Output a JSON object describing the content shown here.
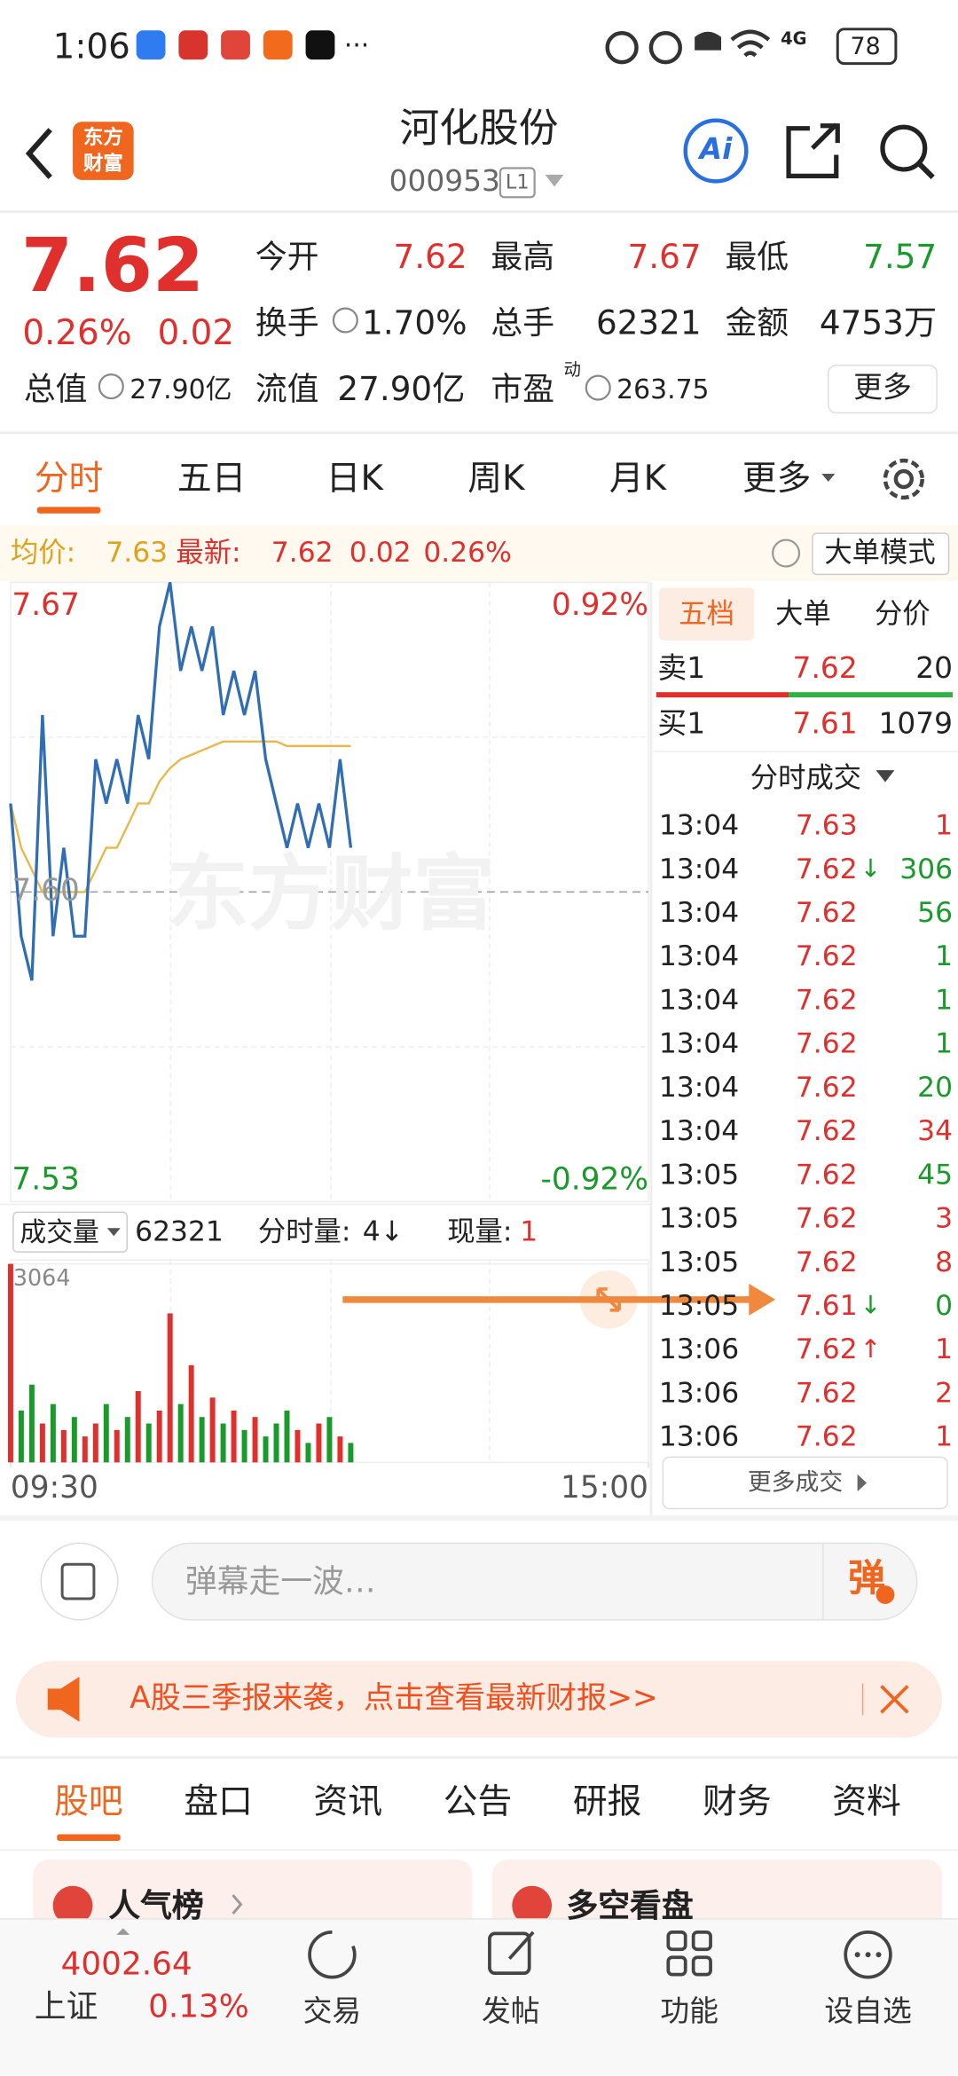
{
  "status_bar": {
    "time": "1:06",
    "more": "···",
    "network": "4G",
    "battery": "78"
  },
  "header": {
    "logo_top": "东方",
    "logo_bottom": "财富",
    "title": "河化股份",
    "code": "000953",
    "level": "L1",
    "ai": "Ai"
  },
  "quote": {
    "price": "7.62",
    "change_pct": "0.26%",
    "change": "0.02",
    "open": {
      "label": "今开",
      "value": "7.62"
    },
    "high": {
      "label": "最高",
      "value": "7.67"
    },
    "low": {
      "label": "最低",
      "value": "7.57"
    },
    "turnover": {
      "label": "换手",
      "value": "1.70%"
    },
    "volume": {
      "label": "总手",
      "value": "62321"
    },
    "amount": {
      "label": "金额",
      "value": "4753万"
    },
    "market_cap": {
      "label": "总值",
      "value": "27.90亿"
    },
    "float_cap": {
      "label": "流值",
      "value": "27.90亿"
    },
    "pe": {
      "label": "市盈",
      "mark": "动",
      "value": "263.75"
    },
    "more": "更多"
  },
  "chart_tabs": [
    "分时",
    "五日",
    "日K",
    "周K",
    "月K",
    "更多"
  ],
  "info_bar": {
    "avg_label": "均价:",
    "avg": "7.63",
    "latest_label": "最新:",
    "latest": "7.62",
    "change": "0.02",
    "change_pct": "0.26%",
    "mode": "大单模式"
  },
  "watermark": "东方财富",
  "intraday": {
    "type": "line",
    "x": [
      0,
      4,
      8,
      12,
      16,
      20,
      24,
      28,
      32,
      36,
      40,
      44,
      48,
      52,
      56,
      60,
      64,
      68,
      72,
      76,
      80,
      84,
      88,
      92,
      96,
      100,
      104,
      108,
      112,
      116,
      120,
      124,
      128
    ],
    "xlim": [
      0,
      240
    ],
    "xticks": [
      {
        "value": 0,
        "label": "09:30"
      },
      {
        "value": 240,
        "label": "15:00"
      }
    ],
    "ylim": [
      7.53,
      7.67
    ],
    "yticks": [
      7.53,
      {
        "value": 7.6,
        "label": "7.60"
      },
      7.67
    ],
    "y2lim": [
      -0.92,
      0.92
    ],
    "y2ticks": [
      {
        "value": -0.92,
        "label": "-0.92%"
      },
      {
        "value": 0.92,
        "label": "0.92%"
      }
    ],
    "series": [
      {
        "color": "#2f6db5",
        "values": [
          7.62,
          7.59,
          7.58,
          7.64,
          7.59,
          7.61,
          7.59,
          7.59,
          7.63,
          7.62,
          7.63,
          7.62,
          7.64,
          7.63,
          7.66,
          7.67,
          7.65,
          7.66,
          7.65,
          7.66,
          7.64,
          7.65,
          7.64,
          7.65,
          7.63,
          7.62,
          7.61,
          7.62,
          7.61,
          7.62,
          7.61,
          7.63,
          7.61
        ]
      },
      {
        "color": "#e8b84a",
        "values": [
          7.62,
          7.61,
          7.605,
          7.6,
          7.6,
          7.6,
          7.6,
          7.6,
          7.605,
          7.61,
          7.61,
          7.615,
          7.62,
          7.62,
          7.625,
          7.628,
          7.63,
          7.631,
          7.632,
          7.633,
          7.634,
          7.634,
          7.634,
          7.634,
          7.634,
          7.634,
          7.633,
          7.633,
          7.633,
          7.633,
          7.633,
          7.633,
          7.633
        ]
      }
    ]
  },
  "volume_bar": {
    "label": "成交量",
    "total": "62321",
    "minute_label": "分时量:",
    "minute": "4↓",
    "current_label": "现量:",
    "current": "1"
  },
  "volume": {
    "type": "bar",
    "ylim": [
      0,
      3064
    ],
    "yticks": [
      3064
    ],
    "colors": {
      "up": "#e0302d",
      "down": "#1a9a2a"
    },
    "values": [
      3064,
      800,
      1200,
      600,
      900,
      500,
      700,
      400,
      600,
      900,
      500,
      700,
      1100,
      600,
      800,
      2300,
      900,
      1500,
      700,
      1000,
      600,
      800,
      500,
      700,
      400,
      600,
      800,
      500,
      300,
      600,
      700,
      400,
      300
    ]
  },
  "order_book": {
    "tabs": [
      "五档",
      "大单",
      "分价"
    ],
    "ask": {
      "label": "卖1",
      "price": "7.62",
      "volume": "20"
    },
    "bid": {
      "label": "买1",
      "price": "7.61",
      "volume": "1079"
    },
    "trades_title": "分时成交",
    "trades": [
      {
        "time": "13:04",
        "price": "7.63",
        "volume": "1",
        "color": "#e0302d"
      },
      {
        "time": "13:04",
        "price": "7.62",
        "arrow": "↓",
        "volume": "306",
        "color": "#1a9a2a"
      },
      {
        "time": "13:04",
        "price": "7.62",
        "volume": "56",
        "color": "#1a9a2a"
      },
      {
        "time": "13:04",
        "price": "7.62",
        "volume": "1",
        "color": "#1a9a2a"
      },
      {
        "time": "13:04",
        "price": "7.62",
        "volume": "1",
        "color": "#1a9a2a"
      },
      {
        "time": "13:04",
        "price": "7.62",
        "volume": "1",
        "color": "#1a9a2a"
      },
      {
        "time": "13:04",
        "price": "7.62",
        "volume": "20",
        "color": "#1a9a2a"
      },
      {
        "time": "13:04",
        "price": "7.62",
        "volume": "34",
        "color": "#e0302d"
      },
      {
        "time": "13:05",
        "price": "7.62",
        "volume": "45",
        "color": "#1a9a2a"
      },
      {
        "time": "13:05",
        "price": "7.62",
        "volume": "3",
        "color": "#e0302d"
      },
      {
        "time": "13:05",
        "price": "7.62",
        "volume": "8",
        "color": "#e0302d"
      },
      {
        "time": "13:05",
        "price": "7.61",
        "arrow": "↓",
        "volume": "0",
        "color": "#1a9a2a"
      },
      {
        "time": "13:06",
        "price": "7.62",
        "arrow": "↑",
        "volume": "1",
        "color": "#e0302d"
      },
      {
        "time": "13:06",
        "price": "7.62",
        "volume": "2",
        "color": "#e0302d"
      },
      {
        "time": "13:06",
        "price": "7.62",
        "volume": "1",
        "color": "#e0302d"
      }
    ],
    "more": "更多成交"
  },
  "comment": {
    "placeholder": "弹幕走一波…",
    "button": "弹"
  },
  "banner": "A股三季报来袭，点击查看最新财报>>",
  "bottom_tabs": [
    "股吧",
    "盘口",
    "资讯",
    "公告",
    "研报",
    "财务",
    "资料"
  ],
  "cards": [
    {
      "title": "人气榜"
    },
    {
      "title": "多空看盘"
    }
  ],
  "nav": {
    "index_name": "上证",
    "index_value": "4002.64",
    "index_change": "0.13%",
    "items": [
      "交易",
      "发帖",
      "功能",
      "设自选"
    ]
  }
}
